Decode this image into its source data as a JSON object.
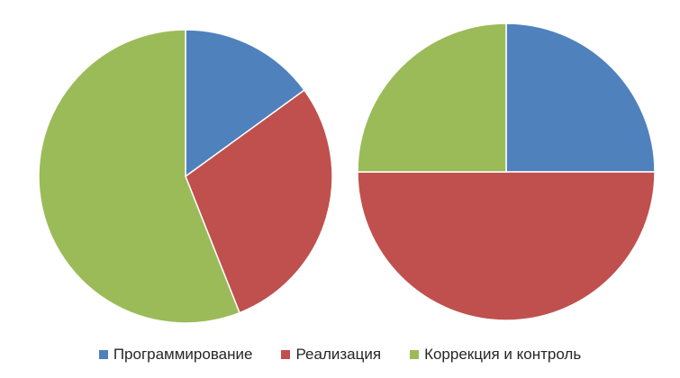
{
  "chart_data": [
    {
      "type": "pie",
      "categories": [
        "Программирование",
        "Реализация",
        "Коррекция и контроль"
      ],
      "values": [
        15,
        29,
        56
      ]
    },
    {
      "type": "pie",
      "categories": [
        "Программирование",
        "Реализация",
        "Коррекция и контроль"
      ],
      "values": [
        25,
        50,
        25
      ]
    }
  ],
  "legend": {
    "placement": "bottom",
    "items": [
      {
        "label": "Программирование",
        "color": "#4f81bd"
      },
      {
        "label": "Реализация",
        "color": "#c0504d"
      },
      {
        "label": "Коррекция и контроль",
        "color": "#9bbb59"
      }
    ]
  }
}
